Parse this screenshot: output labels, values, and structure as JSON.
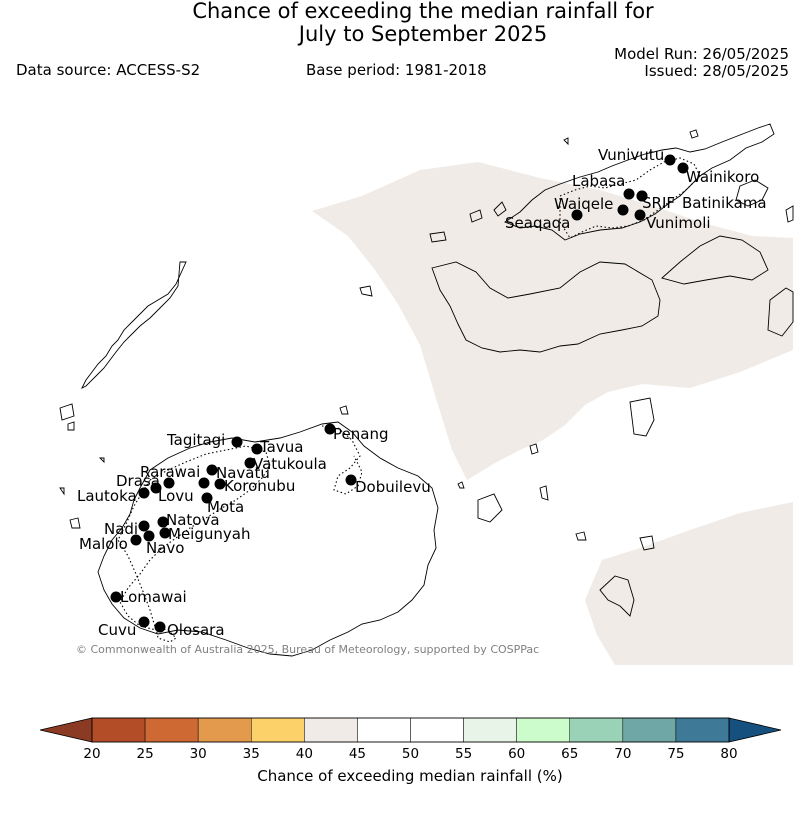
{
  "header": {
    "title_line1": "Chance of exceeding the median rainfall for",
    "title_line2": "July to September 2025",
    "model_run": "Model Run: 26/05/2025",
    "issued": "Issued: 28/05/2025",
    "data_source": "Data source: ACCESS-S2",
    "base_period": "Base period: 1981-2018"
  },
  "copyright": "© Commonwealth of Australia 2025, Bureau of Meteorology, supported by COSPPac",
  "stations": [
    {
      "name": "Vunivutu"
    },
    {
      "name": "Wainikoro"
    },
    {
      "name": "Labasa"
    },
    {
      "name": "SRIF"
    },
    {
      "name": "Batinikama"
    },
    {
      "name": "Waiqele"
    },
    {
      "name": "Seaqaqa"
    },
    {
      "name": "Vunimoli"
    },
    {
      "name": "Penang"
    },
    {
      "name": "Tagitagi"
    },
    {
      "name": "Tavua"
    },
    {
      "name": "Vatukoula"
    },
    {
      "name": "Rarawai"
    },
    {
      "name": "Navatu"
    },
    {
      "name": "Drasa"
    },
    {
      "name": "Koronubu"
    },
    {
      "name": "Lautoka"
    },
    {
      "name": "Lovu"
    },
    {
      "name": "Dobuilevu"
    },
    {
      "name": "Mota"
    },
    {
      "name": "Natova"
    },
    {
      "name": "Nadi"
    },
    {
      "name": "Meigunyah"
    },
    {
      "name": "Malolo"
    },
    {
      "name": "Navo"
    },
    {
      "name": "Lomawai"
    },
    {
      "name": "Cuvu"
    },
    {
      "name": "Olosara"
    }
  ],
  "colorbar": {
    "label": "Chance of exceeding median rainfall (%)",
    "ticks": [
      "20",
      "25",
      "30",
      "35",
      "40",
      "45",
      "50",
      "55",
      "60",
      "65",
      "70",
      "75",
      "80"
    ],
    "low_extend_color": "#8b3a24",
    "high_extend_color": "#16507e",
    "colors": [
      "#b34d28",
      "#cf6934",
      "#e39a4d",
      "#fdd16a",
      "#f0ebe6",
      "#ffffff",
      "#ffffff",
      "#e9f4e9",
      "#ccfccc",
      "#9ad2b7",
      "#6fa6a6",
      "#3e7a98"
    ]
  },
  "map_colors": {
    "shade": "#f0ebe6",
    "land_outline": "#000000",
    "station_marker": "#000000"
  }
}
